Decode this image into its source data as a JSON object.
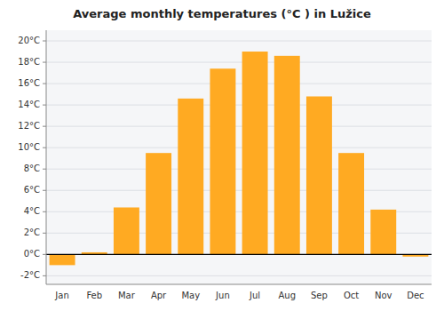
{
  "chart_data": {
    "type": "bar",
    "title": "Average monthly temperatures (°C ) in Lužice",
    "categories": [
      "Jan",
      "Feb",
      "Mar",
      "Apr",
      "May",
      "Jun",
      "Jul",
      "Aug",
      "Sep",
      "Oct",
      "Nov",
      "Dec"
    ],
    "values": [
      -1.0,
      0.2,
      4.4,
      9.5,
      14.6,
      17.4,
      19.0,
      18.6,
      14.8,
      9.5,
      4.2,
      -0.2
    ],
    "color": "#FFAA22",
    "ylim": [
      -2.8,
      21.0
    ],
    "yticks": [
      {
        "value": -2,
        "label": "-2°C"
      },
      {
        "value": 0,
        "label": "0°C"
      },
      {
        "value": 2,
        "label": "2°C"
      },
      {
        "value": 4,
        "label": "4°C"
      },
      {
        "value": 6,
        "label": "6°C"
      },
      {
        "value": 8,
        "label": "8°C"
      },
      {
        "value": 10,
        "label": "10°C"
      },
      {
        "value": 12,
        "label": "12°C"
      },
      {
        "value": 14,
        "label": "14°C"
      },
      {
        "value": 16,
        "label": "16°C"
      },
      {
        "value": 18,
        "label": "18°C"
      },
      {
        "value": 20,
        "label": "20°C"
      }
    ],
    "grid": true
  }
}
